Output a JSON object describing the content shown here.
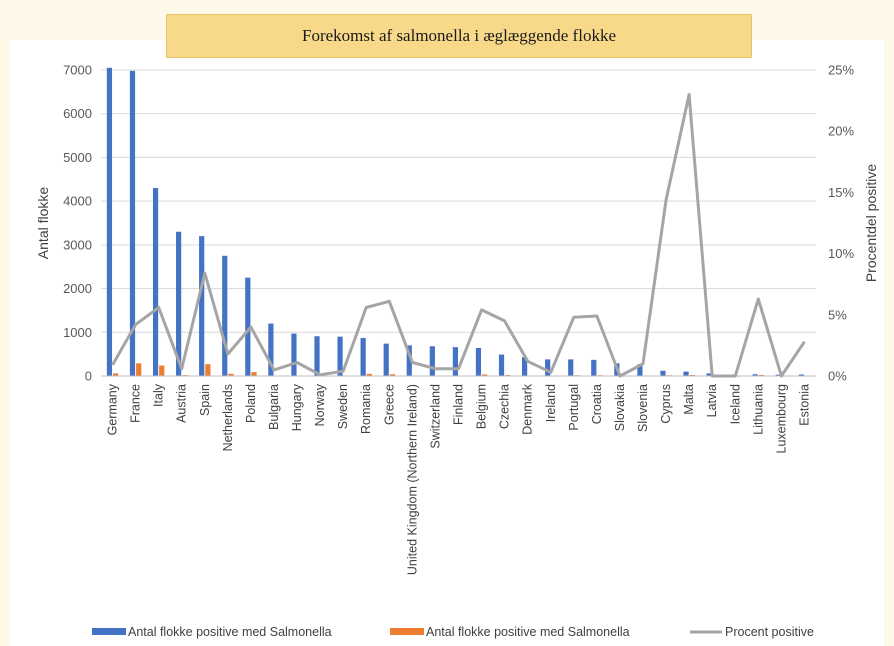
{
  "chart_data": {
    "type": "bar+line",
    "title": "Forekomst af salmonella i æglæggende flokke",
    "ylabel": "Antal flokke",
    "y2label": "Procentdel positive",
    "ylim": [
      0,
      7000
    ],
    "y2lim": [
      0,
      25
    ],
    "yticks": [
      "0",
      "1000",
      "2000",
      "3000",
      "4000",
      "5000",
      "6000",
      "7000"
    ],
    "y2ticks": [
      "0%",
      "5%",
      "10%",
      "15%",
      "20%",
      "25%"
    ],
    "grid": true,
    "legend_position": "bottom",
    "categories": [
      "Germany",
      "France",
      "Italy",
      "Austria",
      "Spain",
      "Netherlands",
      "Poland",
      "Bulgaria",
      "Hungary",
      "Norway",
      "Sweden",
      "Romania",
      "Greece",
      "United Kingdom (Northern Ireland)",
      "Switzerland",
      "Finland",
      "Belgium",
      "Czechia",
      "Denmark",
      "Ireland",
      "Portugal",
      "Croatia",
      "Slovakia",
      "Slovenia",
      "Cyprus",
      "Malta",
      "Latvia",
      "Iceland",
      "Lithuania",
      "Luxembourg",
      "Estonia"
    ],
    "series": [
      {
        "name": "Antal flokke positive med Salmonella",
        "type": "bar",
        "color": "#4472c4",
        "values": [
          7050,
          6980,
          4300,
          3300,
          3200,
          2750,
          2250,
          1200,
          970,
          910,
          900,
          870,
          740,
          700,
          680,
          660,
          640,
          490,
          430,
          380,
          380,
          370,
          290,
          270,
          120,
          100,
          60,
          20,
          40,
          30,
          35
        ]
      },
      {
        "name": "Antal flokke positive med Salmonella",
        "type": "bar",
        "color": "#ed7d31",
        "values": [
          60,
          290,
          240,
          20,
          270,
          50,
          90,
          10,
          10,
          1,
          5,
          50,
          40,
          10,
          5,
          5,
          35,
          22,
          10,
          2,
          18,
          18,
          1,
          3,
          17,
          23,
          0,
          0,
          25,
          0,
          1
        ]
      },
      {
        "name": "Procent positive",
        "type": "line",
        "axis": "right",
        "color": "#a5a5a5",
        "values": [
          0.9,
          4.2,
          5.6,
          0.6,
          8.4,
          1.8,
          4.0,
          0.5,
          1.1,
          0.1,
          0.4,
          5.6,
          6.1,
          1.1,
          0.6,
          0.6,
          5.4,
          4.5,
          1.2,
          0.3,
          4.8,
          4.9,
          0.0,
          1.0,
          14.4,
          23.0,
          0.0,
          0.0,
          6.3,
          0.0,
          2.8
        ]
      }
    ]
  }
}
